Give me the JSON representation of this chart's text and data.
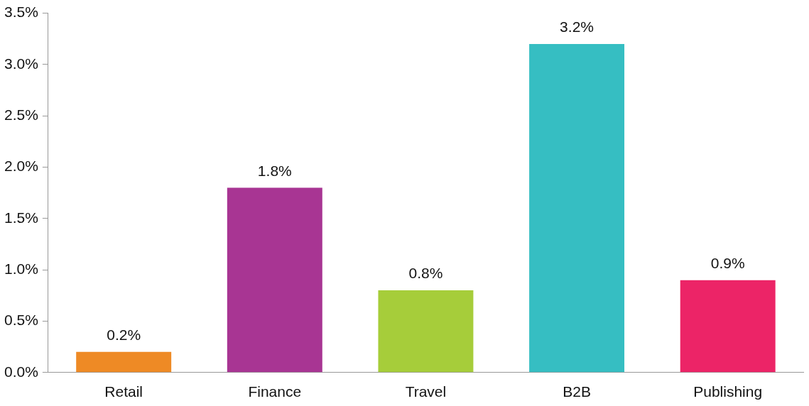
{
  "chart_data": {
    "type": "bar",
    "categories": [
      "Retail",
      "Finance",
      "Travel",
      "B2B",
      "Publishing"
    ],
    "values": [
      0.2,
      1.8,
      0.8,
      3.2,
      0.9
    ],
    "colors": [
      "#ee8a25",
      "#a83593",
      "#a6cd3a",
      "#36bec2",
      "#ec2467"
    ],
    "value_labels": [
      "0.2%",
      "1.8%",
      "0.8%",
      "3.2%",
      "0.9%"
    ],
    "ylim": [
      0,
      3.5
    ],
    "yticks": [
      {
        "value": 0,
        "label": "0.0%"
      },
      {
        "value": 0.5,
        "label": "0.5%"
      },
      {
        "value": 1,
        "label": "1.0%"
      },
      {
        "value": 1.5,
        "label": "1.5%"
      },
      {
        "value": 2,
        "label": "2.0%"
      },
      {
        "value": 2.5,
        "label": "2.5%"
      },
      {
        "value": 3,
        "label": "3.0%"
      },
      {
        "value": 3.5,
        "label": "3.5%"
      }
    ],
    "grid": false,
    "legend": false
  }
}
